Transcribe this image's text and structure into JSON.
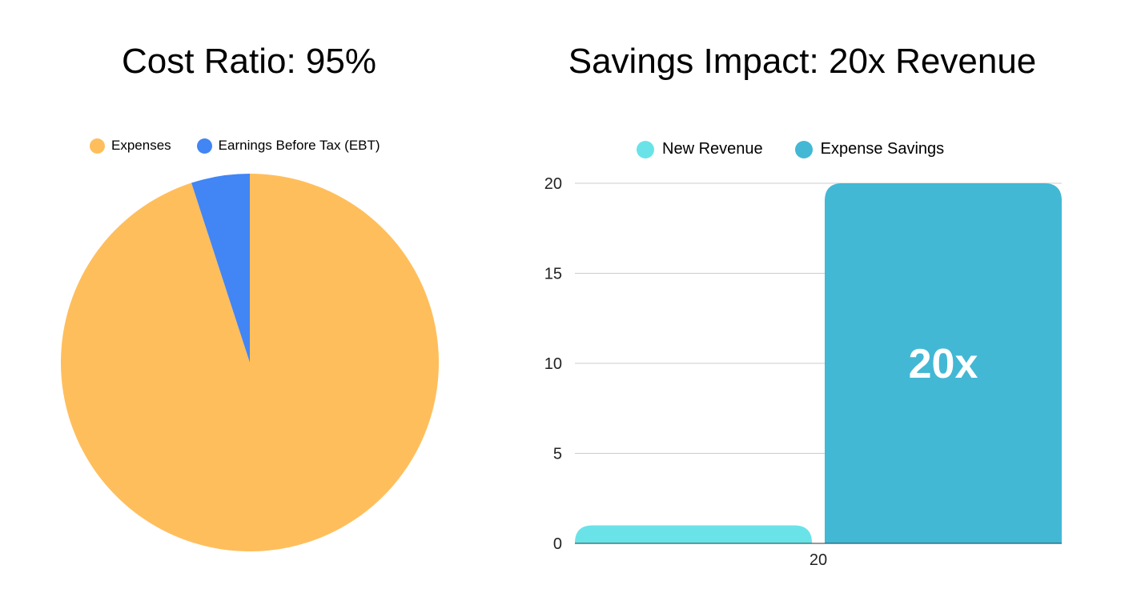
{
  "chart_data": [
    {
      "type": "pie",
      "title": "Cost Ratio: 95%",
      "legend_position": "top",
      "slices": [
        {
          "label": "Expenses",
          "value": 95,
          "color": "#ffbe5c"
        },
        {
          "label": "Earnings Before Tax (EBT)",
          "value": 5,
          "color": "#4285f4"
        }
      ]
    },
    {
      "type": "bar",
      "title": "Savings Impact: 20x Revenue",
      "legend_position": "top",
      "categories": [
        "20"
      ],
      "series": [
        {
          "name": "New Revenue",
          "values": [
            1
          ],
          "color": "#6ae3e8"
        },
        {
          "name": "Expense Savings",
          "values": [
            20
          ],
          "color": "#42b8d5",
          "data_label": "20x"
        }
      ],
      "ylim": [
        0,
        20
      ],
      "yticks": [
        0,
        5,
        10,
        15,
        20
      ],
      "grid": true
    }
  ]
}
